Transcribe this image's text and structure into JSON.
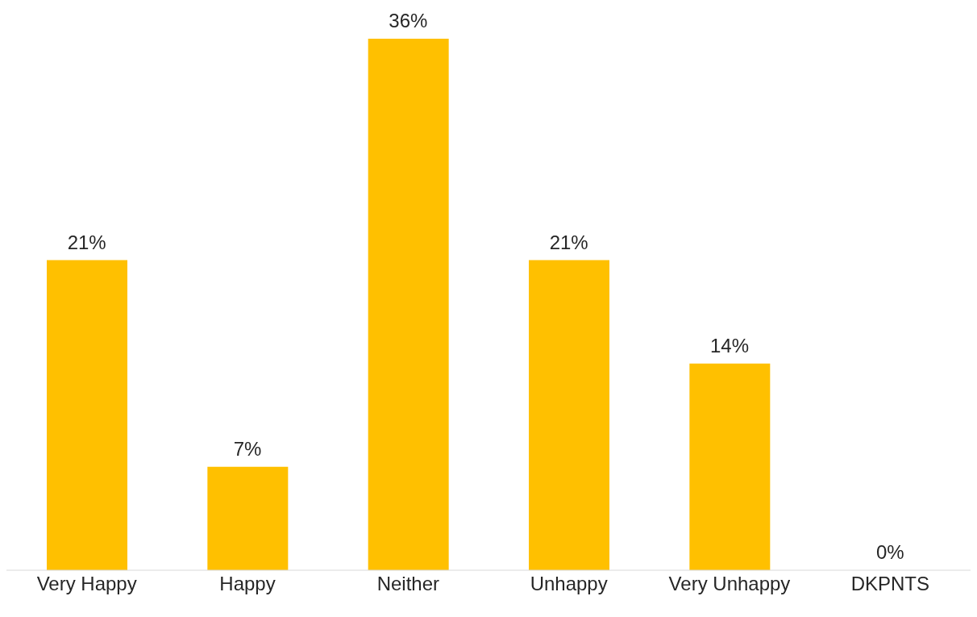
{
  "chart_data": {
    "type": "bar",
    "categories": [
      "Very Happy",
      "Happy",
      "Neither",
      "Unhappy",
      "Very Unhappy",
      "DKPNTS"
    ],
    "values": [
      21,
      7,
      36,
      21,
      14,
      0
    ],
    "value_labels": [
      "21%",
      "7%",
      "36%",
      "21%",
      "14%",
      "0%"
    ],
    "color": "#ffc000",
    "grid": false
  }
}
